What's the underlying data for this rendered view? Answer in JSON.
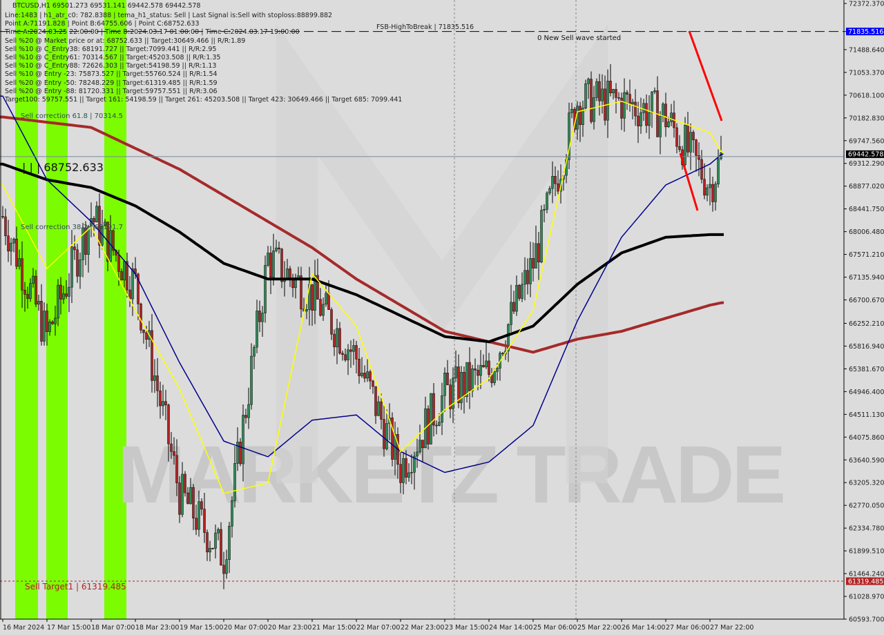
{
  "header": {
    "symbol_line": "BTCUSD,H1  69501.273 69531.141 69442.578 69442.578",
    "info_lines": [
      "Line:1483 | h1_atr_c0: 782.8388 | tema_h1_status: Sell | Last Signal is:Sell with stoploss:88899.882",
      "Point A:71191.828 | Point B:64755.606 | Point C:68752.633",
      "Time A:2024.03.25 22:00:00 | Time B:2024.03.17 01:00:00 | Time C:2024.03.17 19:00:00",
      "Sell %20 @ Market price or at: 68752.633 || Target:30649.466 || R/R:1.89",
      "Sell %10 @ C_Entry38: 68191.727 || Target:7099.441 || R/R:2.95",
      "Sell %10 @ C_Entry61: 70314.567 || Target:45203.508 || R/R:1.35",
      "Sell %10 @ C_Entry88: 72626.303 || Target:54198.59 || R/R:1.13",
      "Sell %10 @ Entry -23: 75873.527 || Target:55760.524 || R/R:1.54",
      "Sell %20 @ Entry -50: 78248.229 || Target:61319.485 || R/R:1.59",
      "Sell %20 @ Entry -88: 81720.331 || Target:59757.551 || R/R:3.06",
      "Target100: 59757.551 || Target 161: 54198.59 || Target 261: 45203.508 || Target 423: 30649.466 || Target 685: 7099.441"
    ]
  },
  "annotations": {
    "fsb": "FSB-HighToBreak | 71835.516",
    "sell_corr_618": "Sell correction 61.8 | 70314.5",
    "sell_corr_382": "Sell correction 38.2 | 68191.7",
    "point_c": "| | | 68752.633",
    "new_wave": "0 New Sell wave started",
    "sell_target": "Sell Target1 | 61319.485",
    "watermark": "MARKETZ TRADE"
  },
  "chart_data": {
    "type": "candlestick",
    "symbol": "BTCUSD",
    "timeframe": "H1",
    "ylim": [
      60593.7,
      72372.37
    ],
    "y_ticks": [
      "72372.370",
      "71835.516",
      "71488.640",
      "71053.370",
      "70618.100",
      "70182.830",
      "69747.560",
      "69312.290",
      "68877.020",
      "68441.750",
      "68006.480",
      "67571.210",
      "67135.940",
      "66700.670",
      "66252.210",
      "65816.940",
      "65381.670",
      "64946.400",
      "64511.130",
      "64075.860",
      "63640.590",
      "63205.320",
      "62770.050",
      "62334.780",
      "61899.510",
      "61464.240",
      "61028.970",
      "60593.700"
    ],
    "x_ticks": [
      "16 Mar 2024",
      "17 Mar 15:00",
      "18 Mar 07:00",
      "18 Mar 23:00",
      "19 Mar 15:00",
      "20 Mar 07:00",
      "20 Mar 23:00",
      "21 Mar 15:00",
      "22 Mar 07:00",
      "22 Mar 23:00",
      "23 Mar 15:00",
      "24 Mar 14:00",
      "25 Mar 06:00",
      "25 Mar 22:00",
      "26 Mar 14:00",
      "27 Mar 06:00",
      "27 Mar 22:00"
    ],
    "close_at_ticks": [
      68300,
      66000,
      68300,
      67000,
      63000,
      61800,
      67500,
      66800,
      65600,
      63500,
      64900,
      65300,
      67400,
      70500,
      70500,
      70200,
      68900
    ],
    "last_close": 69442.578,
    "levels": [
      {
        "label": "71835.516",
        "color": "#0000ff",
        "style": "dashed"
      },
      {
        "label": "69442.578",
        "color": "#000000",
        "style": "solid"
      },
      {
        "label": "61319.485",
        "color": "#b22222",
        "style": "dashed"
      }
    ],
    "moving_averages": [
      {
        "color": "#a52a2a",
        "values": [
          70200,
          70100,
          70000,
          69600,
          69200,
          68700,
          68200,
          67700,
          67100,
          66600,
          66100,
          65900,
          65700,
          65950,
          66100,
          66350,
          66600
        ],
        "last": 66650
      },
      {
        "color": "#000000",
        "values": [
          69300,
          69000,
          68850,
          68500,
          68000,
          67400,
          67100,
          67100,
          66800,
          66400,
          66000,
          65900,
          66200,
          67000,
          67600,
          67900,
          67950
        ],
        "last": 67950
      },
      {
        "color": "#00008b",
        "values": [
          70600,
          69000,
          68200,
          67200,
          65500,
          64000,
          63700,
          64400,
          64500,
          63800,
          63400,
          63600,
          64300,
          66300,
          67900,
          68900,
          69300
        ],
        "last": 69500
      },
      {
        "color": "#ffff00",
        "values": [
          68900,
          67300,
          68100,
          66500,
          65000,
          63000,
          63200,
          67200,
          66200,
          63800,
          64600,
          65200,
          66500,
          70300,
          70500,
          70200,
          69900
        ],
        "last": 69500
      }
    ],
    "colors": {
      "bull": "#2e8b57",
      "bear": "#b22222",
      "highlight": "#7cfc00",
      "trend": "#ff0000"
    }
  }
}
